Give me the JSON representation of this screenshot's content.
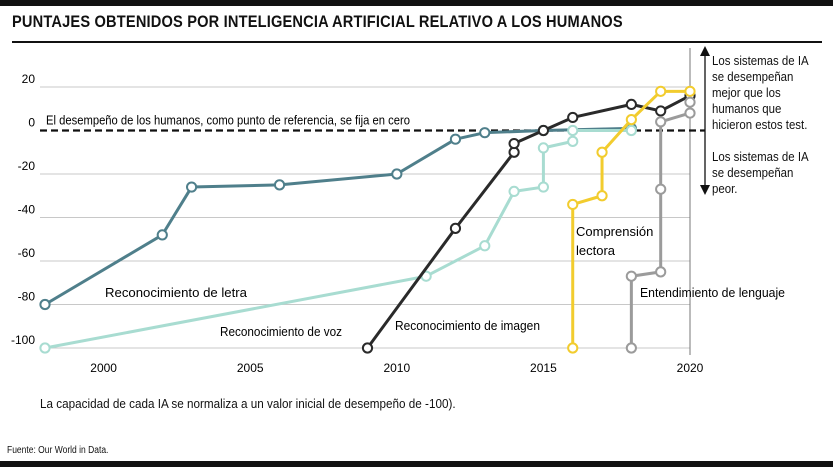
{
  "title": "PUNTAJES OBTENIDOS POR INTELIGENCIA ARTIFICIAL RELATIVO A LOS HUMANOS",
  "side_notes": {
    "above": "Los sistemas de IA se desempeñan mejor que los humanos que hicieron estos test.",
    "below": "Los sistemas de IA se desempeñan peor."
  },
  "footnote": "La capacidad de cada IA se normaliza a un valor inicial de desempeño de -100).",
  "source": "Fuente: Our World in Data.",
  "chart_data": {
    "type": "line",
    "xlim": [
      1998,
      2020
    ],
    "ylim": [
      -100,
      25
    ],
    "x_ticks": [
      2000,
      2005,
      2010,
      2015,
      2020
    ],
    "y_ticks": [
      20,
      0,
      -20,
      -40,
      -60,
      -80,
      -100
    ],
    "grid": "horizontal",
    "reference_line": {
      "y": 0,
      "label": "El desempeño de los humanos, como punto de referencia, se fija en cero"
    },
    "series": [
      {
        "name": "Reconocimiento de letra",
        "color": "#4f7f8b",
        "points": [
          [
            1998,
            -80
          ],
          [
            2002,
            -48
          ],
          [
            2003,
            -26
          ],
          [
            2006,
            -25
          ],
          [
            2010,
            -20
          ],
          [
            2012,
            -4
          ],
          [
            2013,
            -1
          ],
          [
            2015,
            0
          ],
          [
            2018,
            1
          ]
        ]
      },
      {
        "name": "Reconocimiento de voz",
        "color": "#a8dcd1",
        "points": [
          [
            1998,
            -100
          ],
          [
            2011,
            -67
          ],
          [
            2013,
            -53
          ],
          [
            2014,
            -28
          ],
          [
            2015,
            -26
          ],
          [
            2015,
            -8
          ],
          [
            2016,
            -5
          ],
          [
            2016,
            0
          ],
          [
            2018,
            0
          ]
        ]
      },
      {
        "name": "Reconocimiento de imagen",
        "color": "#2a2a2a",
        "points": [
          [
            2009,
            -100
          ],
          [
            2012,
            -45
          ],
          [
            2014,
            -10
          ],
          [
            2014,
            -6
          ],
          [
            2015,
            0
          ],
          [
            2016,
            6
          ],
          [
            2018,
            12
          ],
          [
            2019,
            9
          ],
          [
            2020,
            16
          ]
        ]
      },
      {
        "name": "Comprensión lectora",
        "color": "#f2cc2e",
        "points": [
          [
            2016,
            -100
          ],
          [
            2016,
            -34
          ],
          [
            2017,
            -30
          ],
          [
            2017,
            -10
          ],
          [
            2018,
            5
          ],
          [
            2019,
            18
          ],
          [
            2020,
            18
          ]
        ]
      },
      {
        "name": "Entendimiento de lenguaje",
        "color": "#9b9b9b",
        "points": [
          [
            2018,
            -100
          ],
          [
            2018,
            -67
          ],
          [
            2019,
            -65
          ],
          [
            2019,
            -27
          ],
          [
            2019,
            4
          ],
          [
            2020,
            8
          ],
          [
            2020,
            13
          ]
        ]
      }
    ],
    "series_labels": [
      "Reconocimiento de letra",
      "Reconocimiento de voz",
      "Reconocimiento de imagen",
      "Comprensión lectora",
      "Entendimiento de lenguaje"
    ]
  }
}
